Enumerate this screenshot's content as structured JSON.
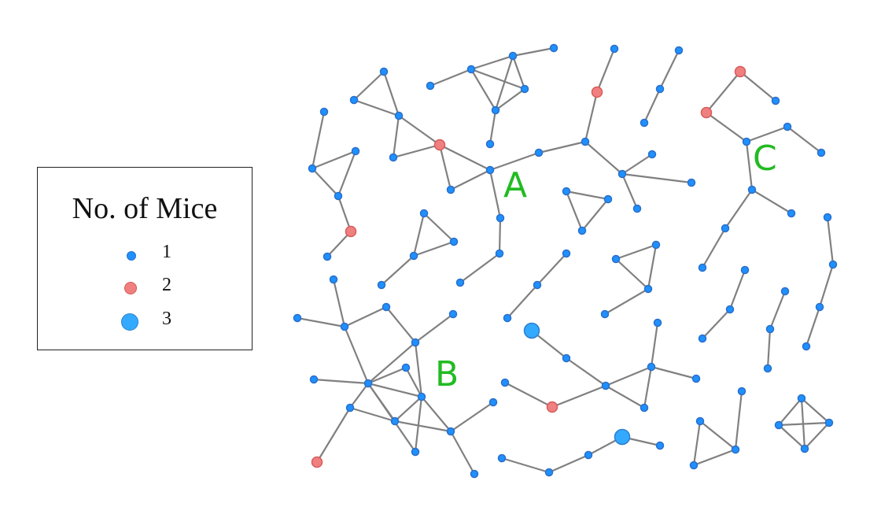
{
  "legend": {
    "title": "No. of Mice",
    "items": [
      {
        "label": "1",
        "color": "#1e90ff",
        "stroke": "#2b6fc9",
        "size": 1
      },
      {
        "label": "2",
        "color": "#f08080",
        "stroke": "#d85a5a",
        "size": 2
      },
      {
        "label": "3",
        "color": "#33aaff",
        "stroke": "#2b7fd0",
        "size": 3
      }
    ]
  },
  "clusters": [
    {
      "id": "A",
      "label": "A"
    },
    {
      "id": "B",
      "label": "B"
    },
    {
      "id": "C",
      "label": "C"
    }
  ],
  "colors": {
    "node_1": "#1e90ff",
    "node_2": "#f08080",
    "node_3": "#33aaff",
    "edge": "#808080",
    "cluster_label": "#22bb22"
  }
}
